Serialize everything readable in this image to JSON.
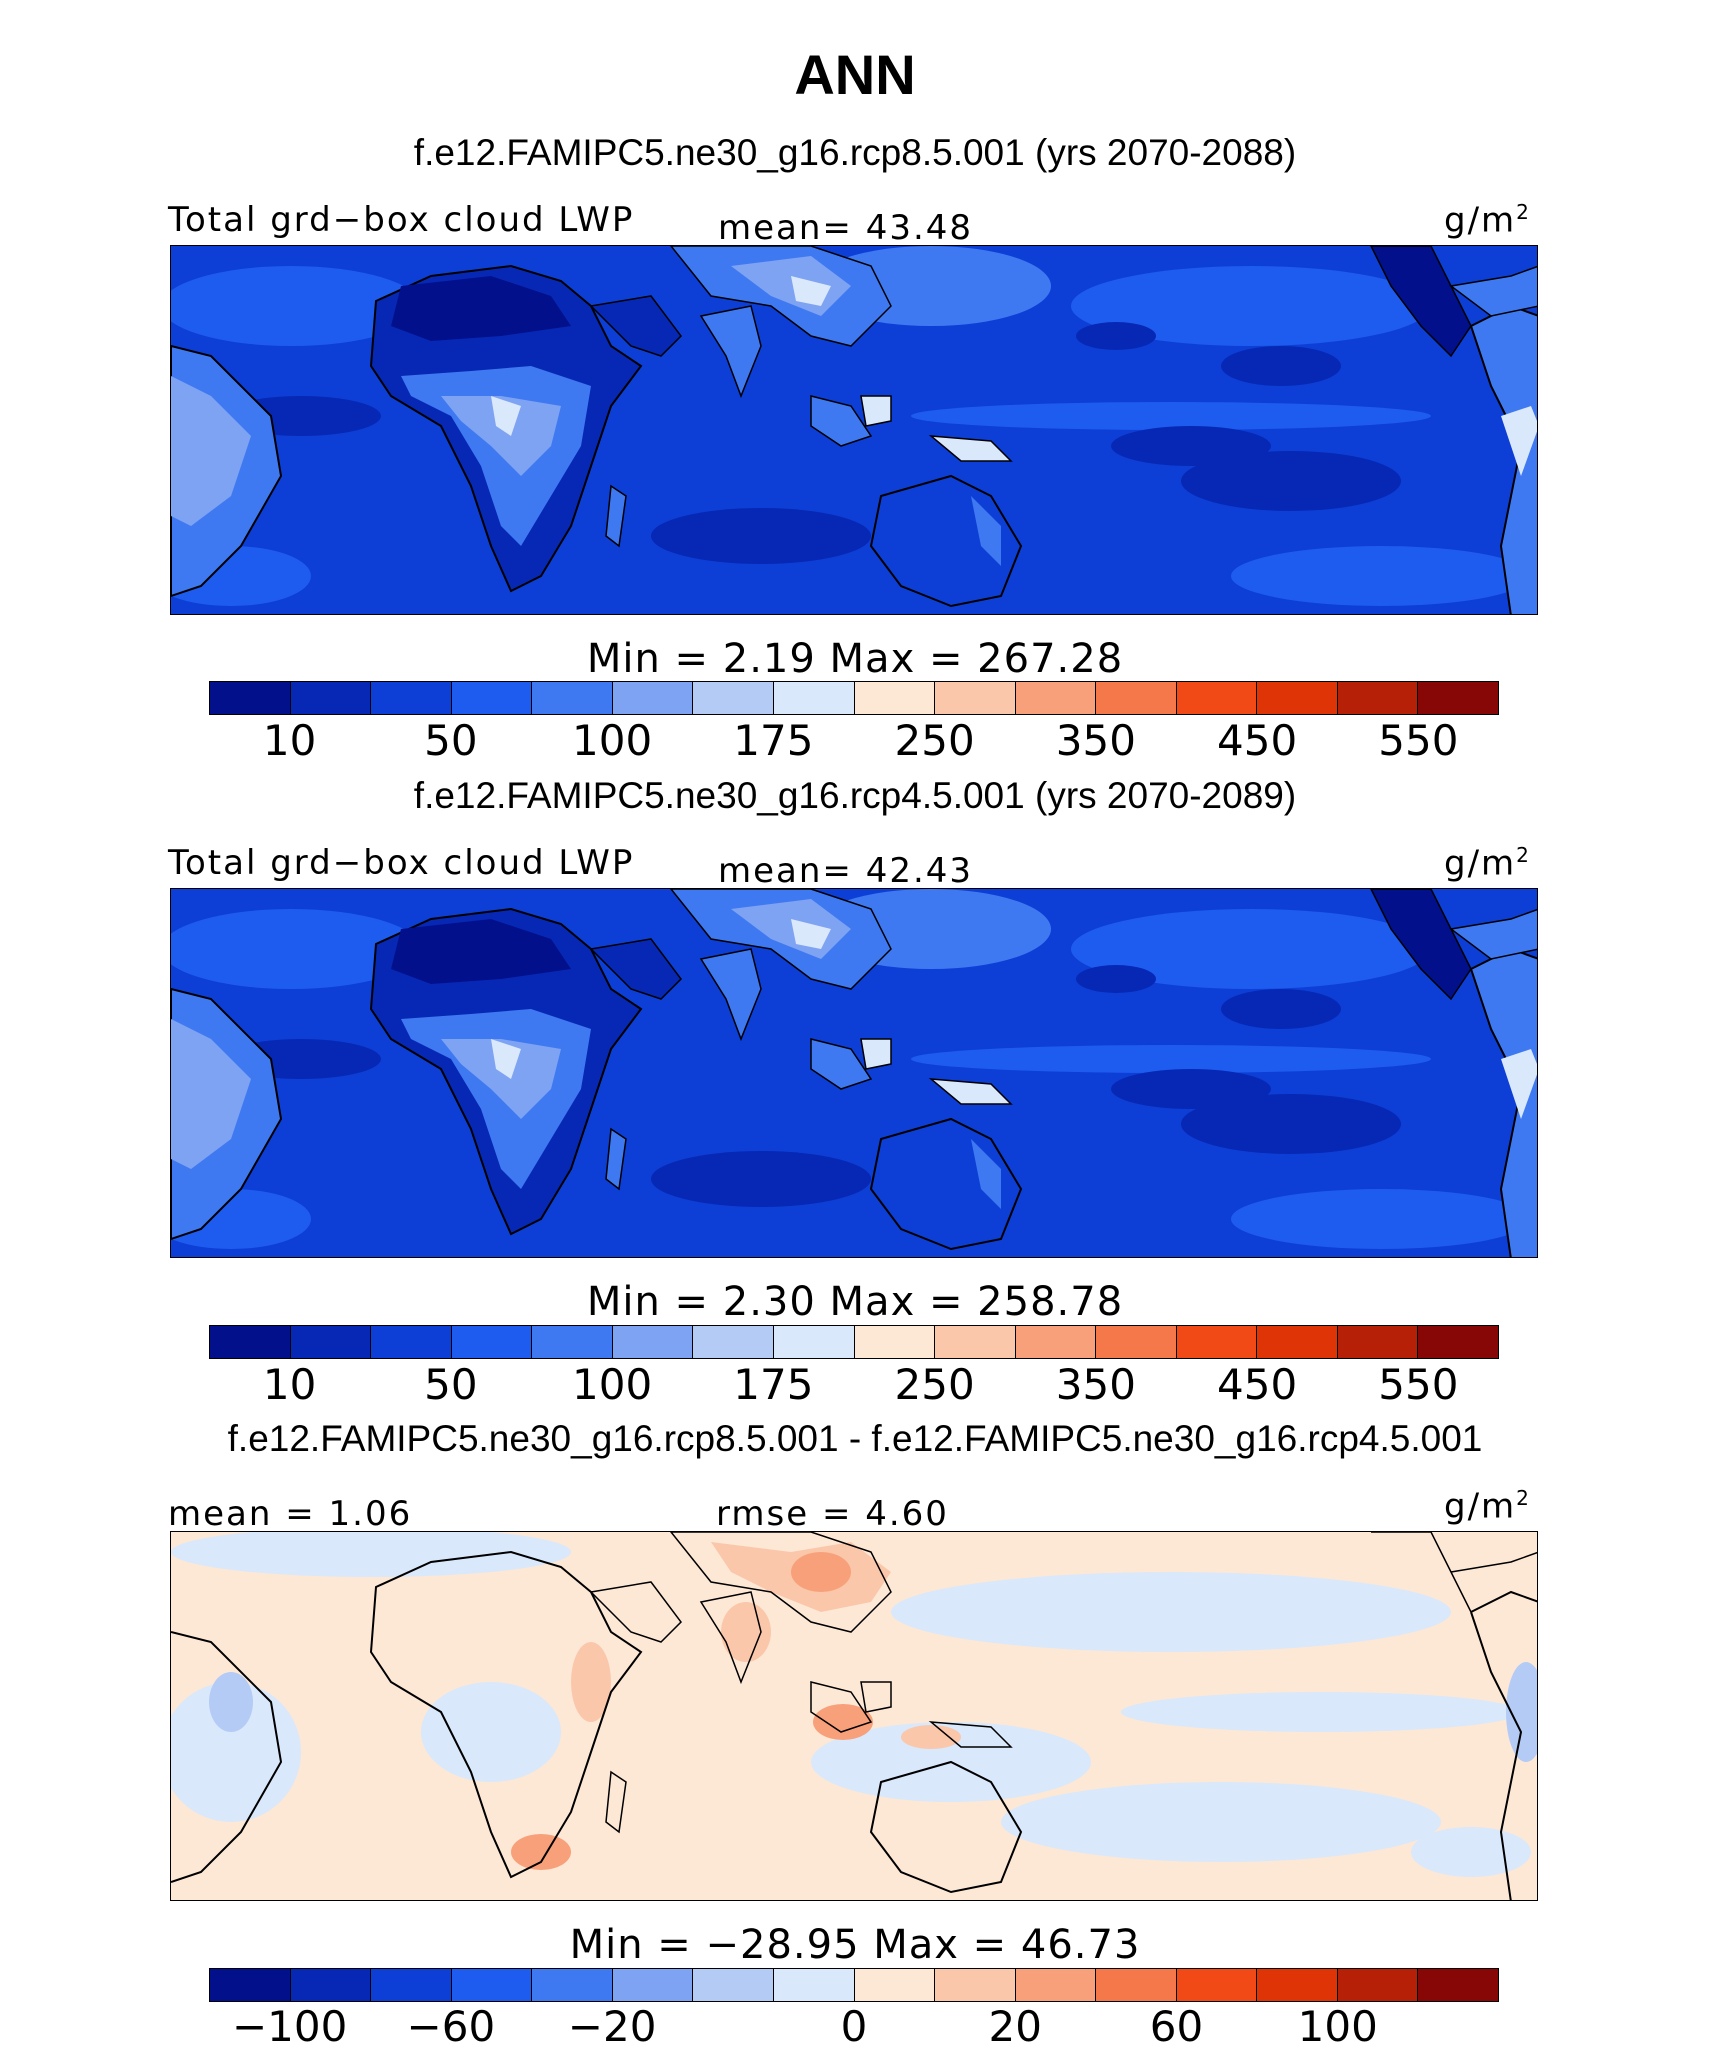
{
  "title": "ANN",
  "panels": [
    {
      "heading": "f.e12.FAMIPC5.ne30_g16.rcp8.5.001 (yrs 2070-2088)",
      "left_label": "Total grd−box cloud LWP",
      "center_label": "mean=  43.48",
      "units": "g/m",
      "units_exp": "2",
      "minmax": "Min =    2.19  Max = 267.28",
      "ticks": [
        "10",
        "50",
        "100",
        "175",
        "250",
        "350",
        "450",
        "550"
      ],
      "palette": "abs"
    },
    {
      "heading": "f.e12.FAMIPC5.ne30_g16.rcp4.5.001 (yrs 2070-2089)",
      "left_label": "Total grd−box cloud LWP",
      "center_label": "mean=  42.43",
      "units": "g/m",
      "units_exp": "2",
      "minmax": "Min =    2.30  Max = 258.78",
      "ticks": [
        "10",
        "50",
        "100",
        "175",
        "250",
        "350",
        "450",
        "550"
      ],
      "palette": "abs"
    },
    {
      "heading": "f.e12.FAMIPC5.ne30_g16.rcp8.5.001 - f.e12.FAMIPC5.ne30_g16.rcp4.5.001",
      "left_label": "mean =   1.06",
      "center_label": "rmse =   4.60",
      "units": "g/m",
      "units_exp": "2",
      "minmax": "Min = −28.95  Max =   46.73",
      "ticks": [
        "−100",
        "−60",
        "−20",
        "0",
        "20",
        "60",
        "100"
      ],
      "palette": "diff"
    }
  ],
  "colorbar_colors": [
    "#03108c",
    "#0728b4",
    "#0d3fd6",
    "#1e5cf0",
    "#3f79f2",
    "#7fa3f3",
    "#b4cbf6",
    "#d9e8fb",
    "#fde8d6",
    "#fbc7aa",
    "#f8a07a",
    "#f5784a",
    "#f24a16",
    "#df3506",
    "#b62006",
    "#870707"
  ],
  "map_colors": {
    "ocean": "#0d3fd6",
    "ocean_light": "#1e5cf0",
    "ocean_dark": "#0728b4",
    "land_dark": "#03108c",
    "land_mid": "#3f79f2",
    "land_light": "#7fa3f3",
    "land_pale": "#d9e8fb",
    "diff_base": "#fde8d6",
    "diff_blue": "#d9e8fb",
    "diff_blue2": "#b4cbf6",
    "diff_orange": "#fbc7aa",
    "diff_orange2": "#f8a07a"
  }
}
